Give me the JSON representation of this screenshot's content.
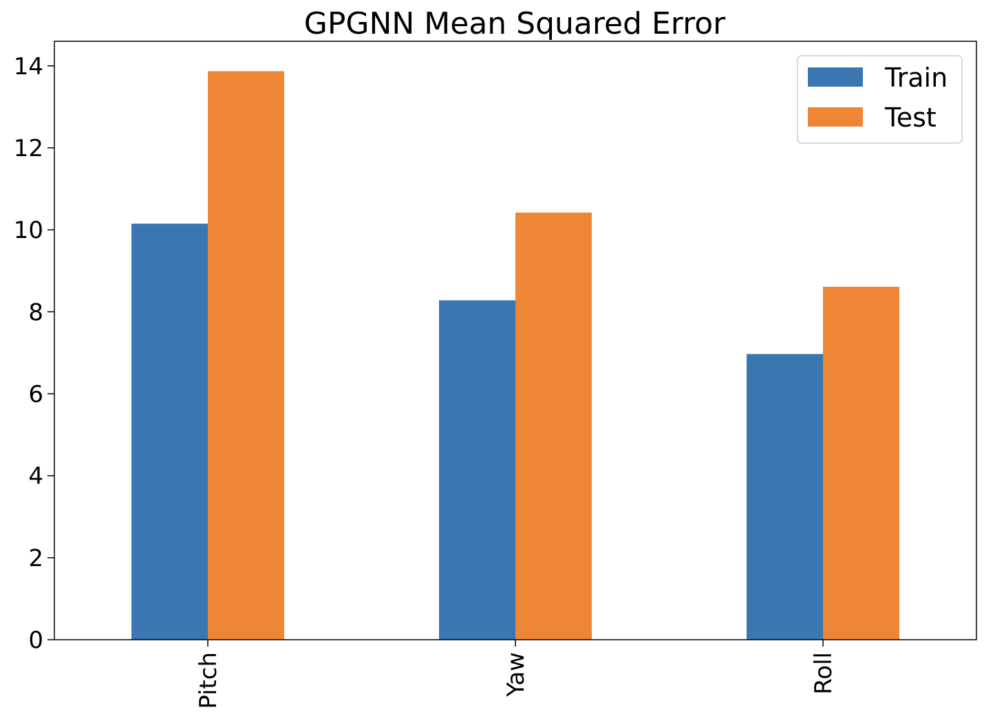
{
  "chart_data": {
    "type": "bar",
    "title": "GPGNN Mean Squared Error",
    "xlabel": "",
    "ylabel": "",
    "categories": [
      "Pitch",
      "Yaw",
      "Roll"
    ],
    "series": [
      {
        "name": "Train",
        "values": [
          10.15,
          8.28,
          6.97
        ],
        "color": "#3a76af"
      },
      {
        "name": "Test",
        "values": [
          13.87,
          10.42,
          8.61
        ],
        "color": "#ef8636"
      }
    ],
    "ylim": [
      0,
      14.6
    ],
    "yticks": [
      "0",
      "2",
      "4",
      "6",
      "8",
      "10",
      "12",
      "14"
    ],
    "grid": false,
    "legend_position": "top-right"
  }
}
